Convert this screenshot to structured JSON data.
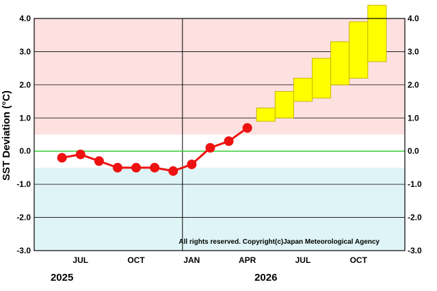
{
  "chart_data": {
    "type": "line",
    "ylabel": "SST Deviation (°C)",
    "ylim": [
      -3.0,
      4.0
    ],
    "yticks": [
      "4.0",
      "3.0",
      "2.0",
      "1.0",
      "0.0",
      "-1.0",
      "-2.0",
      "-3.0"
    ],
    "xlim": [
      "2025-05",
      "2026-12"
    ],
    "month_labels": [
      {
        "label": "JUL",
        "month": "2025-07"
      },
      {
        "label": "OCT",
        "month": "2025-10"
      },
      {
        "label": "JAN",
        "month": "2026-01"
      },
      {
        "label": "APR",
        "month": "2026-04"
      },
      {
        "label": "JUL",
        "month": "2026-07"
      },
      {
        "label": "OCT",
        "month": "2026-10"
      }
    ],
    "year_labels": [
      {
        "label": "2025",
        "month": "2025-06"
      },
      {
        "label": "2026",
        "month": "2026-05"
      }
    ],
    "bands": [
      {
        "name": "warm",
        "from": 0.5,
        "to": 4.0,
        "color": "#fde0e0"
      },
      {
        "name": "cold",
        "from": -3.0,
        "to": -0.5,
        "color": "#dff4f6"
      }
    ],
    "zero_line_color": "#33cc33",
    "observed": {
      "color": "#ee1111",
      "months": [
        "2025-06",
        "2025-07",
        "2025-08",
        "2025-09",
        "2025-10",
        "2025-11",
        "2025-12",
        "2026-01",
        "2026-02",
        "2026-03",
        "2026-04"
      ],
      "values": [
        -0.2,
        -0.1,
        -0.3,
        -0.5,
        -0.5,
        -0.5,
        -0.6,
        -0.4,
        0.1,
        0.3,
        0.7
      ]
    },
    "forecast_boxes": {
      "color": "#ffff00",
      "border": "#c8b400",
      "months": [
        "2026-05",
        "2026-06",
        "2026-07",
        "2026-08",
        "2026-09",
        "2026-10",
        "2026-11"
      ],
      "low": [
        0.9,
        1.0,
        1.5,
        1.6,
        2.0,
        2.2,
        2.7
      ],
      "high": [
        1.3,
        1.8,
        2.2,
        2.8,
        3.3,
        3.9,
        4.6
      ]
    },
    "grid": true,
    "copyright": "All rights reserved. Copyright(c)Japan Meteorological Agency"
  }
}
